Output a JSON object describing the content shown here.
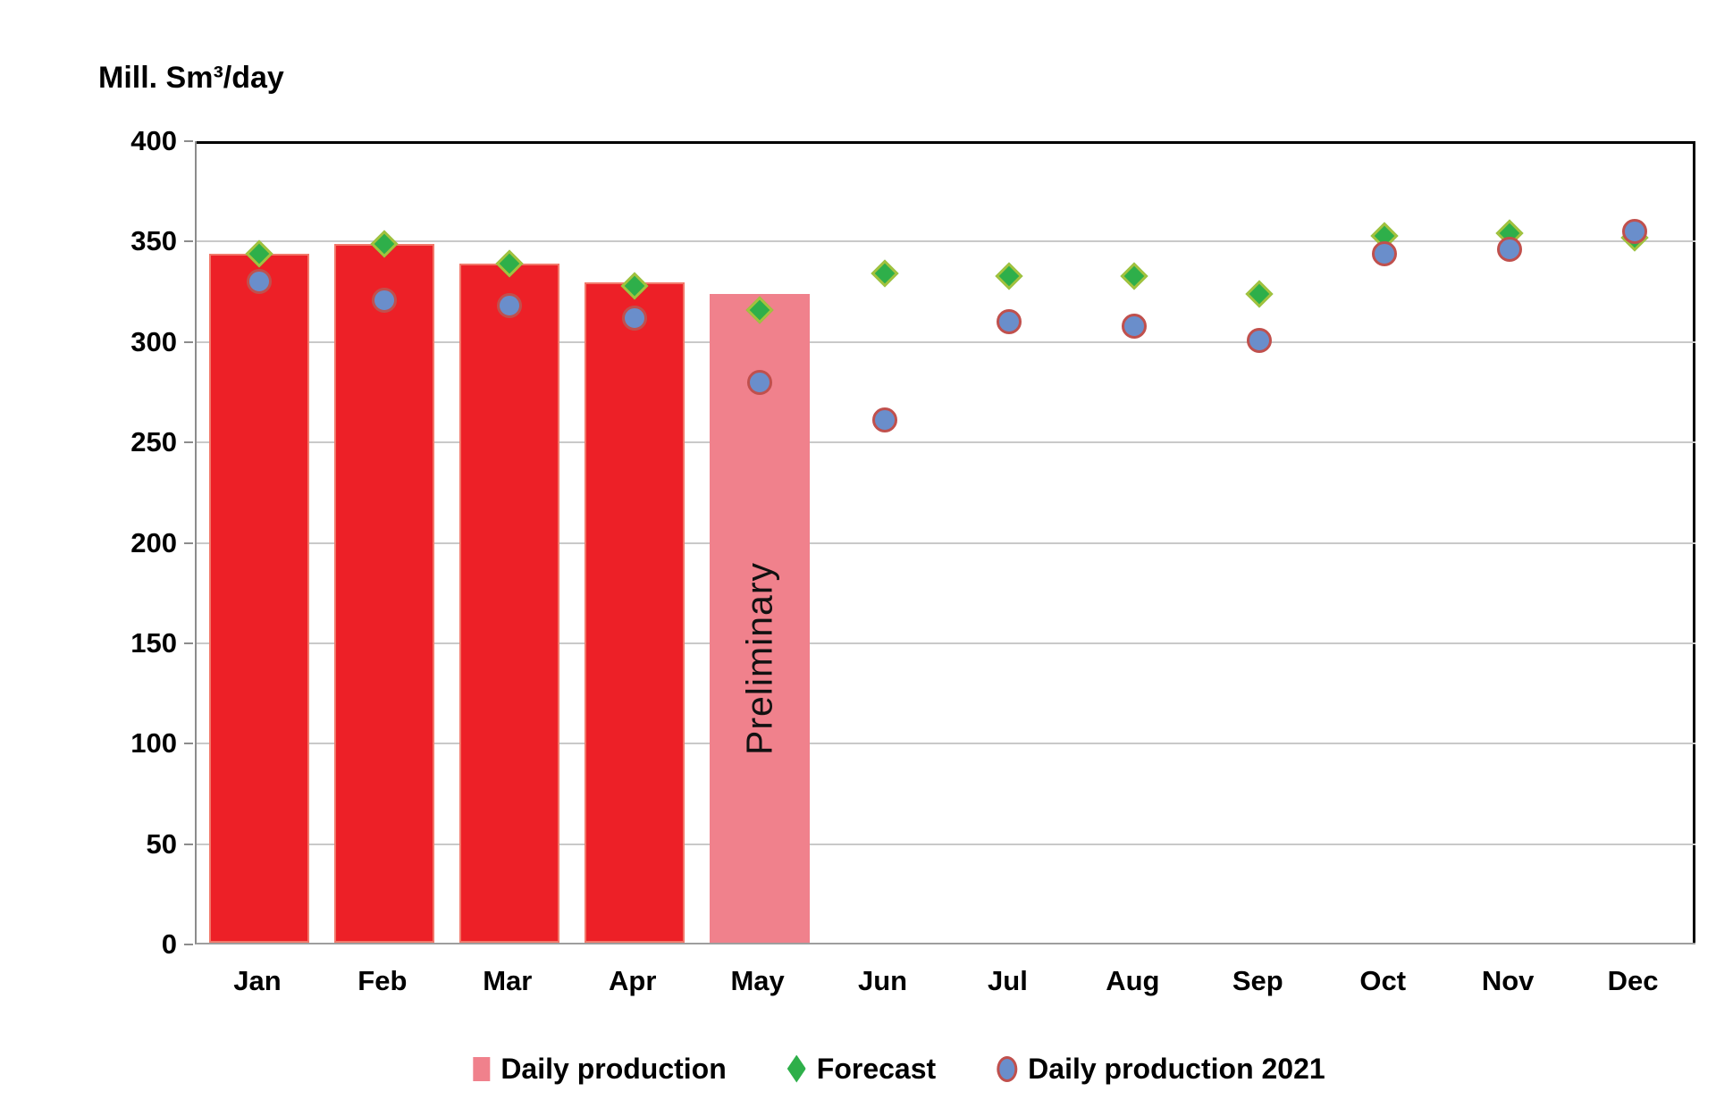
{
  "chart_data": {
    "type": "bar",
    "title": "Mill. Sm³/day",
    "categories": [
      "Jan",
      "Feb",
      "Mar",
      "Apr",
      "May",
      "Jun",
      "Jul",
      "Aug",
      "Sep",
      "Oct",
      "Nov",
      "Dec"
    ],
    "series": [
      {
        "name": "Daily production",
        "type": "bar",
        "values": [
          343,
          348,
          338,
          329,
          323,
          null,
          null,
          null,
          null,
          null,
          null,
          null
        ],
        "preliminary_index": 4
      },
      {
        "name": "Forecast",
        "type": "scatter",
        "marker": "diamond",
        "values": [
          344,
          349,
          339,
          328,
          316,
          334,
          333,
          333,
          324,
          353,
          354,
          352
        ]
      },
      {
        "name": "Daily production 2021",
        "type": "scatter",
        "marker": "circle",
        "values": [
          330,
          321,
          318,
          312,
          280,
          261,
          310,
          308,
          301,
          344,
          346,
          355
        ]
      }
    ],
    "annotation": {
      "text": "Preliminary",
      "month_index": 4
    },
    "ylim": [
      0,
      400
    ],
    "ytick_step": 50,
    "yticks": [
      "0",
      "50",
      "100",
      "150",
      "200",
      "250",
      "300",
      "350",
      "400"
    ],
    "grid": true,
    "legend_position": "bottom",
    "colors": {
      "bar_fill": "#ed2027",
      "bar_border": "#f2786a",
      "preliminary_fill": "#f0818c",
      "forecast_fill": "#2eaf4a",
      "forecast_border": "#a3c23e",
      "production2021_fill": "#6a8ecb",
      "production2021_border": "#c0504d",
      "gridline": "#c9c9c9",
      "axis": "#8c8c8c",
      "plot_border": "#000000"
    }
  }
}
